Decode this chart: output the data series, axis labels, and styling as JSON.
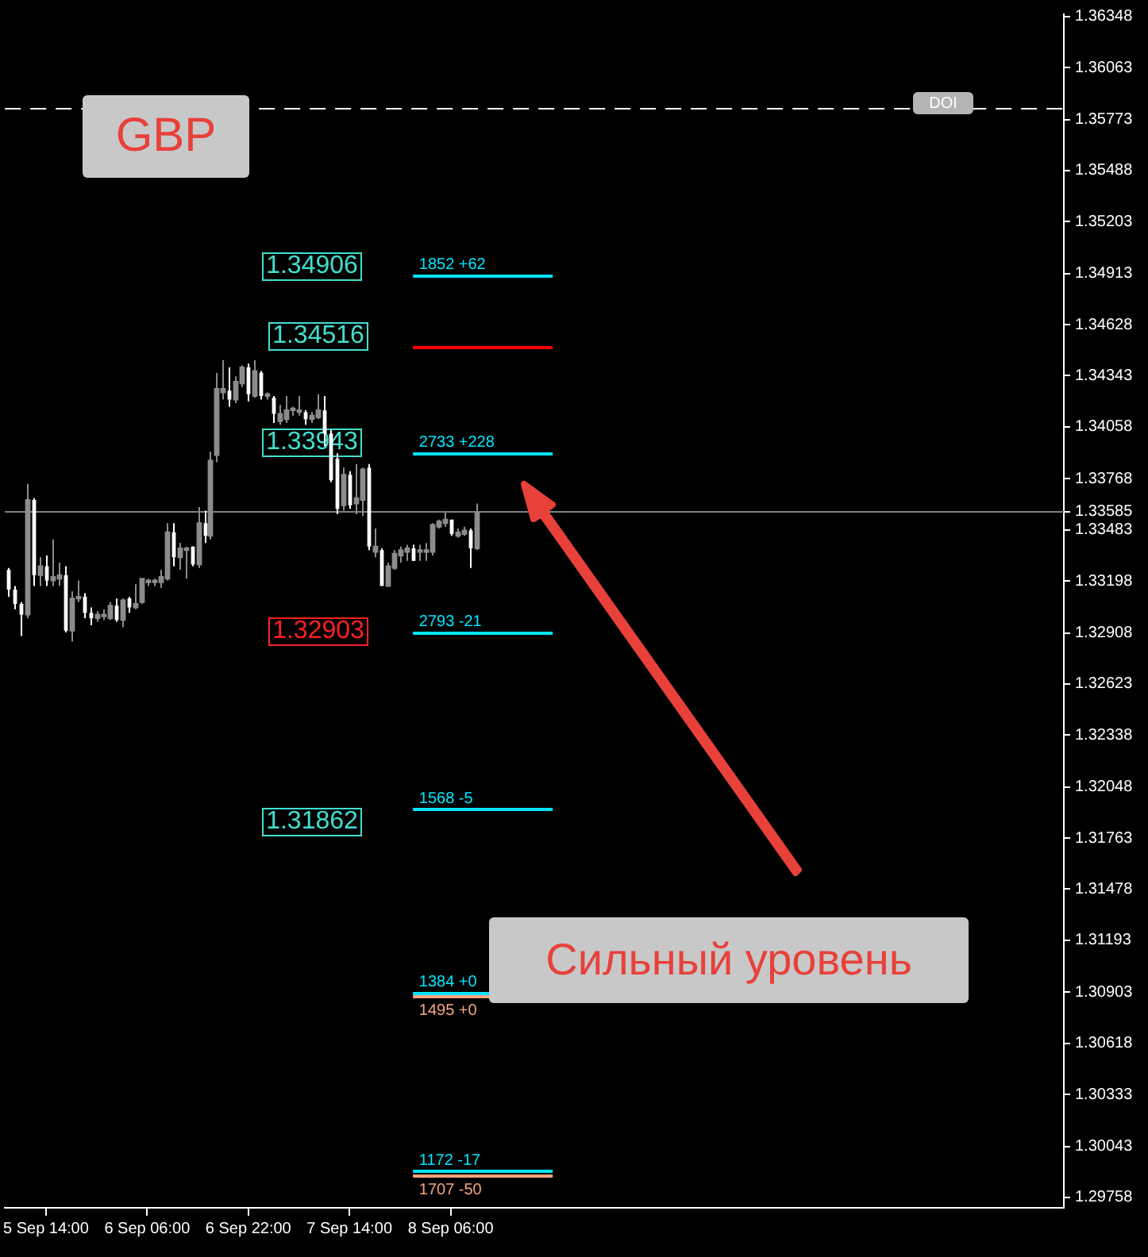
{
  "chart_data": {
    "type": "candlestick",
    "x": [
      "--09-05T08:00",
      "--09-05T09:00",
      "--09-05T10:00",
      "--09-05T11:00",
      "--09-05T12:00",
      "--09-05T13:00",
      "--09-05T14:00",
      "--09-05T15:00",
      "--09-05T16:00",
      "--09-05T17:00",
      "--09-05T18:00",
      "--09-05T19:00",
      "--09-05T20:00",
      "--09-05T21:00",
      "--09-05T22:00",
      "--09-05T23:00",
      "--09-06T00:00",
      "--09-06T01:00",
      "--09-06T02:00",
      "--09-06T03:00",
      "--09-06T04:00",
      "--09-06T05:00",
      "--09-06T06:00",
      "--09-06T07:00",
      "--09-06T08:00",
      "--09-06T09:00",
      "--09-06T10:00",
      "--09-06T11:00",
      "--09-06T12:00",
      "--09-06T13:00",
      "--09-06T14:00",
      "--09-06T15:00",
      "--09-06T16:00",
      "--09-06T17:00",
      "--09-06T18:00",
      "--09-06T19:00",
      "--09-06T20:00",
      "--09-06T21:00",
      "--09-06T22:00",
      "--09-06T23:00",
      "--09-07T00:00",
      "--09-07T01:00",
      "--09-07T02:00",
      "--09-07T03:00",
      "--09-07T04:00",
      "--09-07T05:00",
      "--09-07T06:00",
      "--09-07T07:00",
      "--09-07T08:00",
      "--09-07T09:00",
      "--09-07T10:00",
      "--09-07T11:00",
      "--09-07T12:00",
      "--09-07T13:00",
      "--09-07T14:00",
      "--09-07T15:00",
      "--09-07T16:00",
      "--09-07T17:00",
      "--09-07T18:00",
      "--09-07T19:00",
      "--09-07T20:00",
      "--09-07T21:00",
      "--09-07T22:00",
      "--09-07T23:00",
      "--09-08T00:00",
      "--09-08T01:00",
      "--09-08T02:00",
      "--09-08T03:00",
      "--09-08T04:00",
      "--09-08T05:00",
      "--09-08T06:00",
      "--09-08T07:00",
      "--09-08T08:00",
      "--09-08T09:00",
      "--09-08T10:00"
    ],
    "ohlc": [
      [
        1.3326,
        1.3327,
        1.3311,
        1.3315
      ],
      [
        1.3315,
        1.3317,
        1.3304,
        1.3307
      ],
      [
        1.3307,
        1.3308,
        1.3289,
        1.3301
      ],
      [
        1.3301,
        1.3374,
        1.3299,
        1.3365
      ],
      [
        1.3365,
        1.3366,
        1.3317,
        1.3323
      ],
      [
        1.3323,
        1.3333,
        1.3317,
        1.3328
      ],
      [
        1.3328,
        1.3334,
        1.3317,
        1.332
      ],
      [
        1.332,
        1.3343,
        1.3317,
        1.3322
      ],
      [
        1.3321,
        1.333,
        1.3317,
        1.3323
      ],
      [
        1.3323,
        1.3328,
        1.3291,
        1.3292
      ],
      [
        1.3292,
        1.3314,
        1.3286,
        1.331
      ],
      [
        1.331,
        1.332,
        1.3308,
        1.3311
      ],
      [
        1.3311,
        1.3313,
        1.3299,
        1.3302
      ],
      [
        1.3302,
        1.3305,
        1.3295,
        1.3299
      ],
      [
        1.3299,
        1.3303,
        1.3297,
        1.3301
      ],
      [
        1.33,
        1.3304,
        1.3298,
        1.3301
      ],
      [
        1.3299,
        1.3308,
        1.3298,
        1.3306
      ],
      [
        1.3306,
        1.331,
        1.3297,
        1.3298
      ],
      [
        1.3298,
        1.331,
        1.3294,
        1.3309
      ],
      [
        1.331,
        1.3311,
        1.3302,
        1.3305
      ],
      [
        1.3305,
        1.3318,
        1.3304,
        1.3307
      ],
      [
        1.3308,
        1.3321,
        1.3307,
        1.3321
      ],
      [
        1.3319,
        1.3321,
        1.3317,
        1.332
      ],
      [
        1.3319,
        1.3321,
        1.3317,
        1.332
      ],
      [
        1.3319,
        1.3326,
        1.3316,
        1.3322
      ],
      [
        1.3321,
        1.3352,
        1.332,
        1.3347
      ],
      [
        1.3347,
        1.3352,
        1.3328,
        1.3333
      ],
      [
        1.3333,
        1.3341,
        1.3326,
        1.3338
      ],
      [
        1.3337,
        1.3339,
        1.3321,
        1.3338
      ],
      [
        1.3339,
        1.3339,
        1.3328,
        1.3329
      ],
      [
        1.3329,
        1.3361,
        1.3327,
        1.3352
      ],
      [
        1.3352,
        1.3359,
        1.3341,
        1.3345
      ],
      [
        1.3345,
        1.3392,
        1.3343,
        1.3387
      ],
      [
        1.339,
        1.3436,
        1.3386,
        1.3427
      ],
      [
        1.3425,
        1.3443,
        1.3421,
        1.3427
      ],
      [
        1.3426,
        1.3439,
        1.3417,
        1.3421
      ],
      [
        1.3421,
        1.3434,
        1.3419,
        1.3431
      ],
      [
        1.343,
        1.344,
        1.3428,
        1.3439
      ],
      [
        1.3439,
        1.3441,
        1.342,
        1.3424
      ],
      [
        1.3423,
        1.3443,
        1.3422,
        1.3437
      ],
      [
        1.3436,
        1.3437,
        1.3421,
        1.3423
      ],
      [
        1.3423,
        1.3425,
        1.3421,
        1.3424
      ],
      [
        1.3422,
        1.3423,
        1.3408,
        1.3413
      ],
      [
        1.3409,
        1.3418,
        1.3407,
        1.3413
      ],
      [
        1.341,
        1.3423,
        1.3408,
        1.3415
      ],
      [
        1.3415,
        1.3417,
        1.3412,
        1.3416
      ],
      [
        1.3414,
        1.3423,
        1.3412,
        1.3415
      ],
      [
        1.3414,
        1.3415,
        1.3407,
        1.341
      ],
      [
        1.341,
        1.3414,
        1.3408,
        1.3412
      ],
      [
        1.3411,
        1.3424,
        1.341,
        1.3415
      ],
      [
        1.3415,
        1.3423,
        1.3395,
        1.3402
      ],
      [
        1.3402,
        1.3404,
        1.3375,
        1.3376
      ],
      [
        1.3388,
        1.3391,
        1.3357,
        1.336
      ],
      [
        1.3362,
        1.3383,
        1.3359,
        1.3379
      ],
      [
        1.3379,
        1.3381,
        1.336,
        1.3362
      ],
      [
        1.3363,
        1.3385,
        1.3357,
        1.3366
      ],
      [
        1.3365,
        1.3383,
        1.3356,
        1.3382
      ],
      [
        1.3383,
        1.3385,
        1.3337,
        1.3339
      ],
      [
        1.3336,
        1.3349,
        1.3333,
        1.3339
      ],
      [
        1.3337,
        1.3338,
        1.3317,
        1.3317
      ],
      [
        1.3317,
        1.333,
        1.3317,
        1.3328
      ],
      [
        1.3327,
        1.3337,
        1.3326,
        1.3335
      ],
      [
        1.3334,
        1.3339,
        1.333,
        1.3337
      ],
      [
        1.3336,
        1.334,
        1.3331,
        1.3338
      ],
      [
        1.3338,
        1.334,
        1.3331,
        1.3331
      ],
      [
        1.3336,
        1.334,
        1.3331,
        1.3337
      ],
      [
        1.3336,
        1.3341,
        1.3331,
        1.3337
      ],
      [
        1.3336,
        1.3352,
        1.3334,
        1.3351
      ],
      [
        1.335,
        1.3354,
        1.3349,
        1.3353
      ],
      [
        1.3352,
        1.3358,
        1.335,
        1.3354
      ],
      [
        1.3354,
        1.3354,
        1.3345,
        1.3346
      ],
      [
        1.3345,
        1.3349,
        1.3344,
        1.3347
      ],
      [
        1.3346,
        1.335,
        1.3345,
        1.3348
      ],
      [
        1.3348,
        1.3349,
        1.3327,
        1.3338
      ],
      [
        1.3338,
        1.3363,
        1.3337,
        1.3358
      ]
    ],
    "colors": [
      "#ffffff",
      "#ffffff",
      "#ffffff",
      "#8c8c8c",
      "#ffffff",
      "#8c8c8c",
      "#ffffff",
      "#8c8c8c",
      "#8c8c8c",
      "#ffffff",
      "#8c8c8c",
      "#8c8c8c",
      "#ffffff",
      "#ffffff",
      "#8c8c8c",
      "#8c8c8c",
      "#8c8c8c",
      "#ffffff",
      "#8c8c8c",
      "#ffffff",
      "#8c8c8c",
      "#8c8c8c",
      "#8c8c8c",
      "#8c8c8c",
      "#8c8c8c",
      "#8c8c8c",
      "#ffffff",
      "#8c8c8c",
      "#8c8c8c",
      "#ffffff",
      "#8c8c8c",
      "#ffffff",
      "#8c8c8c",
      "#8c8c8c",
      "#8c8c8c",
      "#ffffff",
      "#8c8c8c",
      "#8c8c8c",
      "#ffffff",
      "#8c8c8c",
      "#ffffff",
      "#8c8c8c",
      "#ffffff",
      "#8c8c8c",
      "#8c8c8c",
      "#8c8c8c",
      "#8c8c8c",
      "#ffffff",
      "#8c8c8c",
      "#8c8c8c",
      "#ffffff",
      "#ffffff",
      "#ffffff",
      "#8c8c8c",
      "#ffffff",
      "#8c8c8c",
      "#8c8c8c",
      "#ffffff",
      "#8c8c8c",
      "#ffffff",
      "#8c8c8c",
      "#8c8c8c",
      "#8c8c8c",
      "#8c8c8c",
      "#ffffff",
      "#8c8c8c",
      "#8c8c8c",
      "#8c8c8c",
      "#8c8c8c",
      "#8c8c8c",
      "#ffffff",
      "#8c8c8c",
      "#8c8c8c",
      "#ffffff",
      "#8c8c8c"
    ],
    "xlim": [
      "--09-05T07:30",
      "--09-12T07:00"
    ],
    "xticks": [
      {
        "value": "--09-05T14:00",
        "label": "5 Sep 14:00"
      },
      {
        "value": "--09-06T06:00",
        "label": "6 Sep 06:00"
      },
      {
        "value": "--09-06T22:00",
        "label": "6 Sep 22:00"
      },
      {
        "value": "--09-07T14:00",
        "label": "7 Sep 14:00"
      },
      {
        "value": "--09-08T06:00",
        "label": "8 Sep 06:00"
      }
    ],
    "ylim": [
      1.297,
      1.3636
    ],
    "yticks": [
      1.29758,
      1.30043,
      1.30333,
      1.30618,
      1.30903,
      1.31193,
      1.31478,
      1.31763,
      1.32048,
      1.32338,
      1.32623,
      1.32908,
      1.33198,
      1.33483,
      1.33585,
      1.33768,
      1.34058,
      1.34343,
      1.34628,
      1.34913,
      1.35203,
      1.35488,
      1.35773,
      1.36063,
      1.36348
    ],
    "ref_lines": [
      {
        "axis": "y",
        "value": 1.33585,
        "color": "#808080",
        "line_style": "solid"
      },
      {
        "axis": "y",
        "value": 1.3584,
        "color": "#ffffff",
        "line_style": "dashed"
      },
      {
        "axis": "y",
        "value": 1.349,
        "color": "#00e5ff"
      },
      {
        "axis": "y",
        "value": 1.345,
        "color": "#ff0000"
      },
      {
        "axis": "y",
        "value": 1.3391,
        "color": "#00e5ff"
      },
      {
        "axis": "y",
        "value": 1.3291,
        "color": "#00e5ff"
      },
      {
        "axis": "y",
        "value": 1.3192,
        "color": "#00e5ff"
      },
      {
        "axis": "y",
        "value": 1.309,
        "color": "#00e5ff"
      },
      {
        "axis": "y",
        "value": 1.3088,
        "color": "#f4a582"
      },
      {
        "axis": "y",
        "value": 1.299,
        "color": "#00e5ff"
      },
      {
        "axis": "y",
        "value": 1.2988,
        "color": "#f4a582"
      }
    ],
    "annotations": [
      "GBP",
      "Сильный уровень",
      "DOI",
      "1.34906",
      "1.34516",
      "1.33943",
      "1.32903",
      "1.31862",
      {
        "text": "1852 +62",
        "x": "--09-08T01:00",
        "y": 1.349
      },
      {
        "text": "2733 +228",
        "x": "--09-08T01:00",
        "y": 1.3391
      },
      {
        "text": "2793 -21",
        "x": "--09-08T01:00",
        "y": 1.3291
      },
      {
        "text": "1568 -5",
        "x": "--09-08T01:00",
        "y": 1.3192
      },
      {
        "text": "1384 +0",
        "x": "--09-08T01:00",
        "y": 1.309
      },
      {
        "text": "1495 +0",
        "x": "--09-08T01:00",
        "y": 1.3088
      },
      {
        "text": "1172 -17",
        "x": "--09-08T01:00",
        "y": 1.299
      },
      {
        "text": "1707 -50",
        "x": "--09-08T01:00",
        "y": 1.2988
      }
    ]
  }
}
